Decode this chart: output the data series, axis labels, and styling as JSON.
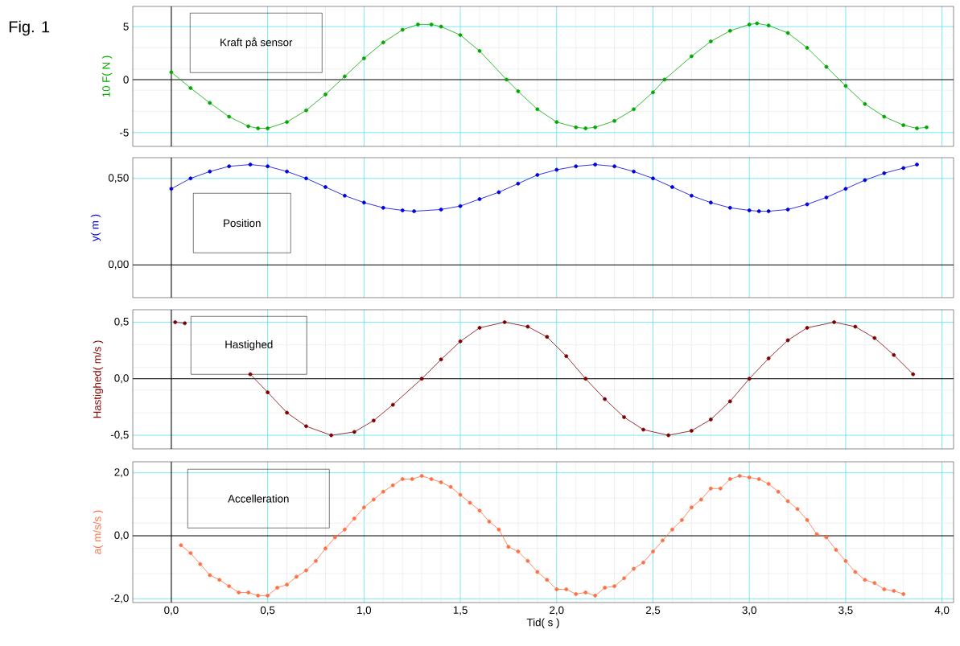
{
  "chart_data": [
    {
      "type": "line",
      "title": "Kraft på sensor",
      "ylabel": "10 F( N )",
      "annotations": [
        "Fig. 1"
      ],
      "color": "#00aa00",
      "marker": "circle",
      "line_style": "solid",
      "grid": true,
      "tick_labels": "y",
      "xlim": [
        -0.2,
        4.06
      ],
      "ylim": [
        -6.3,
        6.9
      ],
      "xticks": [
        {
          "value": 0,
          "label": null
        },
        {
          "value": 0.5,
          "label": null
        },
        {
          "value": 1,
          "label": null
        },
        {
          "value": 1.5,
          "label": null
        },
        {
          "value": 2,
          "label": null
        },
        {
          "value": 2.5,
          "label": null
        },
        {
          "value": 3,
          "label": null
        },
        {
          "value": 3.5,
          "label": null
        },
        {
          "value": 4,
          "label": null
        }
      ],
      "yticks": [
        -5,
        0,
        5
      ],
      "x": [
        0.0,
        0.1,
        0.2,
        0.3,
        0.4,
        0.45,
        0.5,
        0.6,
        0.7,
        0.8,
        0.9,
        1.0,
        1.1,
        1.2,
        1.28,
        1.35,
        1.4,
        1.5,
        1.6,
        1.74,
        1.8,
        1.9,
        2.0,
        2.1,
        2.15,
        2.2,
        2.3,
        2.4,
        2.5,
        2.56,
        2.7,
        2.8,
        2.9,
        3.0,
        3.04,
        3.1,
        3.2,
        3.3,
        3.4,
        3.5,
        3.6,
        3.7,
        3.8,
        3.87,
        3.92
      ],
      "values": [
        0.7,
        -0.8,
        -2.2,
        -3.5,
        -4.4,
        -4.6,
        -4.6,
        -4.0,
        -2.9,
        -1.4,
        0.3,
        2.0,
        3.5,
        4.7,
        5.2,
        5.2,
        5.0,
        4.2,
        2.7,
        0.0,
        -1.1,
        -2.8,
        -4.0,
        -4.5,
        -4.6,
        -4.5,
        -3.9,
        -2.8,
        -1.2,
        0.0,
        2.2,
        3.6,
        4.6,
        5.2,
        5.3,
        5.1,
        4.4,
        3.0,
        1.2,
        -0.6,
        -2.3,
        -3.5,
        -4.3,
        -4.6,
        -4.5
      ]
    },
    {
      "type": "line",
      "title": "Position",
      "ylabel": "y( m )",
      "color": "#0000dd",
      "marker": "circle",
      "line_style": "solid",
      "grid": true,
      "tick_labels": "y",
      "xlim": [
        -0.2,
        4.06
      ],
      "ylim": [
        -0.19,
        0.62
      ],
      "xticks": [
        {
          "value": 0,
          "label": null
        },
        {
          "value": 0.5,
          "label": null
        },
        {
          "value": 1,
          "label": null
        },
        {
          "value": 1.5,
          "label": null
        },
        {
          "value": 2,
          "label": null
        },
        {
          "value": 2.5,
          "label": null
        },
        {
          "value": 3,
          "label": null
        },
        {
          "value": 3.5,
          "label": null
        },
        {
          "value": 4,
          "label": null
        }
      ],
      "yticks": [
        {
          "value": 0,
          "label": "0,00"
        },
        {
          "value": 0.5,
          "label": "0,50"
        }
      ],
      "x": [
        0.0,
        0.1,
        0.2,
        0.3,
        0.41,
        0.5,
        0.6,
        0.7,
        0.8,
        0.9,
        1.0,
        1.1,
        1.2,
        1.26,
        1.4,
        1.5,
        1.6,
        1.7,
        1.8,
        1.9,
        2.0,
        2.1,
        2.2,
        2.3,
        2.4,
        2.5,
        2.6,
        2.7,
        2.8,
        2.9,
        3.0,
        3.05,
        3.1,
        3.2,
        3.3,
        3.4,
        3.5,
        3.6,
        3.7,
        3.8,
        3.87
      ],
      "values": [
        0.44,
        0.5,
        0.54,
        0.57,
        0.58,
        0.57,
        0.54,
        0.5,
        0.45,
        0.4,
        0.36,
        0.33,
        0.315,
        0.31,
        0.32,
        0.34,
        0.38,
        0.42,
        0.47,
        0.52,
        0.55,
        0.57,
        0.58,
        0.57,
        0.54,
        0.5,
        0.45,
        0.4,
        0.36,
        0.33,
        0.315,
        0.31,
        0.31,
        0.32,
        0.35,
        0.39,
        0.44,
        0.49,
        0.53,
        0.56,
        0.58
      ]
    },
    {
      "type": "line",
      "title": "Hastighed",
      "ylabel": "Hastighed( m/s )",
      "color": "#800000",
      "marker": "circle",
      "line_style": "solid",
      "grid": true,
      "tick_labels": "y",
      "xlim": [
        -0.2,
        4.06
      ],
      "ylim": [
        -0.62,
        0.61
      ],
      "xticks": [
        {
          "value": 0,
          "label": null
        },
        {
          "value": 0.5,
          "label": null
        },
        {
          "value": 1,
          "label": null
        },
        {
          "value": 1.5,
          "label": null
        },
        {
          "value": 2,
          "label": null
        },
        {
          "value": 2.5,
          "label": null
        },
        {
          "value": 3,
          "label": null
        },
        {
          "value": 3.5,
          "label": null
        },
        {
          "value": 4,
          "label": null
        }
      ],
      "yticks": [
        {
          "value": -0.5,
          "label": "-0,5"
        },
        {
          "value": 0,
          "label": "0,0"
        },
        {
          "value": 0.5,
          "label": "0,5"
        }
      ],
      "x": [
        0.02,
        0.07,
        0.25,
        0.41,
        0.5,
        0.6,
        0.7,
        0.83,
        0.95,
        1.05,
        1.15,
        1.3,
        1.4,
        1.5,
        1.6,
        1.73,
        1.85,
        1.95,
        2.05,
        2.15,
        2.25,
        2.35,
        2.45,
        2.58,
        2.7,
        2.8,
        2.9,
        3.0,
        3.1,
        3.2,
        3.3,
        3.44,
        3.55,
        3.65,
        3.75,
        3.85
      ],
      "values": [
        0.5,
        0.49,
        null,
        0.04,
        -0.12,
        -0.3,
        -0.42,
        -0.5,
        -0.47,
        -0.37,
        -0.23,
        0.0,
        0.17,
        0.33,
        0.45,
        0.5,
        0.46,
        0.37,
        0.2,
        0.0,
        -0.18,
        -0.34,
        -0.45,
        -0.5,
        -0.46,
        -0.36,
        -0.2,
        0.0,
        0.18,
        0.34,
        0.45,
        0.5,
        0.46,
        0.36,
        0.21,
        0.04
      ]
    },
    {
      "type": "line",
      "title": "Accelleration",
      "ylabel": "a( m/s/s )",
      "xlabel": "Tid( s )",
      "color": "#ff7043",
      "marker": "circle",
      "line_style": "solid",
      "grid": true,
      "xlim": [
        -0.2,
        4.06
      ],
      "ylim": [
        -2.12,
        2.35
      ],
      "xticks": [
        {
          "value": 0,
          "label": "0,0"
        },
        {
          "value": 0.5,
          "label": "0,5"
        },
        {
          "value": 1,
          "label": "1,0"
        },
        {
          "value": 1.5,
          "label": "1,5"
        },
        {
          "value": 2,
          "label": "2,0"
        },
        {
          "value": 2.5,
          "label": "2,5"
        },
        {
          "value": 3,
          "label": "3,0"
        },
        {
          "value": 3.5,
          "label": "3,5"
        },
        {
          "value": 4,
          "label": "4,0"
        }
      ],
      "yticks": [
        {
          "value": -2,
          "label": "-2,0"
        },
        {
          "value": 0,
          "label": "0,0"
        },
        {
          "value": 2,
          "label": "2,0"
        }
      ],
      "x": [
        0.05,
        0.1,
        0.15,
        0.2,
        0.25,
        0.3,
        0.35,
        0.4,
        0.45,
        0.5,
        0.55,
        0.6,
        0.65,
        0.7,
        0.75,
        0.8,
        0.85,
        0.9,
        0.95,
        1.0,
        1.05,
        1.1,
        1.15,
        1.2,
        1.25,
        1.3,
        1.35,
        1.4,
        1.45,
        1.5,
        1.55,
        1.6,
        1.65,
        1.7,
        1.75,
        1.8,
        1.85,
        1.9,
        1.95,
        2.0,
        2.05,
        2.1,
        2.15,
        2.2,
        2.25,
        2.3,
        2.35,
        2.4,
        2.45,
        2.5,
        2.55,
        2.6,
        2.65,
        2.7,
        2.75,
        2.8,
        2.85,
        2.9,
        2.95,
        3.0,
        3.05,
        3.1,
        3.15,
        3.2,
        3.25,
        3.3,
        3.35,
        3.4,
        3.45,
        3.5,
        3.55,
        3.6,
        3.65,
        3.7,
        3.75,
        3.8
      ],
      "values": [
        -0.3,
        -0.55,
        -0.9,
        -1.25,
        -1.4,
        -1.6,
        -1.8,
        -1.8,
        -1.9,
        -1.9,
        -1.65,
        -1.55,
        -1.3,
        -1.1,
        -0.8,
        -0.4,
        -0.05,
        0.2,
        0.55,
        0.9,
        1.15,
        1.4,
        1.6,
        1.8,
        1.8,
        1.9,
        1.8,
        1.7,
        1.55,
        1.3,
        1.05,
        0.8,
        0.45,
        0.2,
        -0.35,
        -0.5,
        -0.8,
        -1.15,
        -1.4,
        -1.7,
        -1.7,
        -1.85,
        -1.8,
        -1.9,
        -1.65,
        -1.6,
        -1.35,
        -1.05,
        -0.85,
        -0.5,
        -0.15,
        0.2,
        0.5,
        0.9,
        1.15,
        1.5,
        1.5,
        1.8,
        1.9,
        1.85,
        1.8,
        1.65,
        1.4,
        1.1,
        0.85,
        0.5,
        0.05,
        -0.05,
        -0.45,
        -0.8,
        -1.15,
        -1.4,
        -1.5,
        -1.7,
        -1.75,
        -1.85
      ]
    }
  ]
}
